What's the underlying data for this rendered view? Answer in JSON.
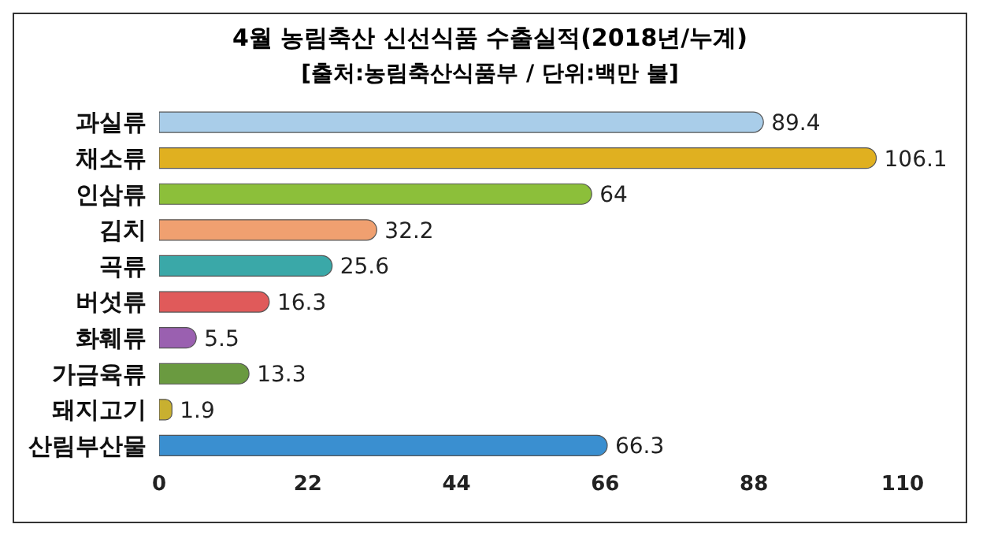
{
  "chart_data": {
    "type": "bar",
    "orientation": "horizontal",
    "title": "4월 농림축산 신선식품 수출실적(2018년/누계)",
    "subtitle": "[출처:농림축산식품부 / 단위:백만 불]",
    "categories": [
      "과실류",
      "채소류",
      "인삼류",
      "김치",
      "곡류",
      "버섯류",
      "화훼류",
      "가금육류",
      "돼지고기",
      "산림부산물"
    ],
    "values": [
      89.4,
      106.1,
      64,
      32.2,
      25.6,
      16.3,
      5.5,
      13.3,
      1.9,
      66.3
    ],
    "colors": [
      "#a9cde9",
      "#e0b020",
      "#8cbf3a",
      "#f0a070",
      "#3aa8a8",
      "#e05a5a",
      "#9a60b0",
      "#6a9a40",
      "#c8b030",
      "#3a8fd0"
    ],
    "xlim": [
      0,
      110
    ],
    "xticks": [
      0,
      22,
      44,
      66,
      88,
      110
    ],
    "data_labels": true,
    "grid": false,
    "legend": false
  }
}
